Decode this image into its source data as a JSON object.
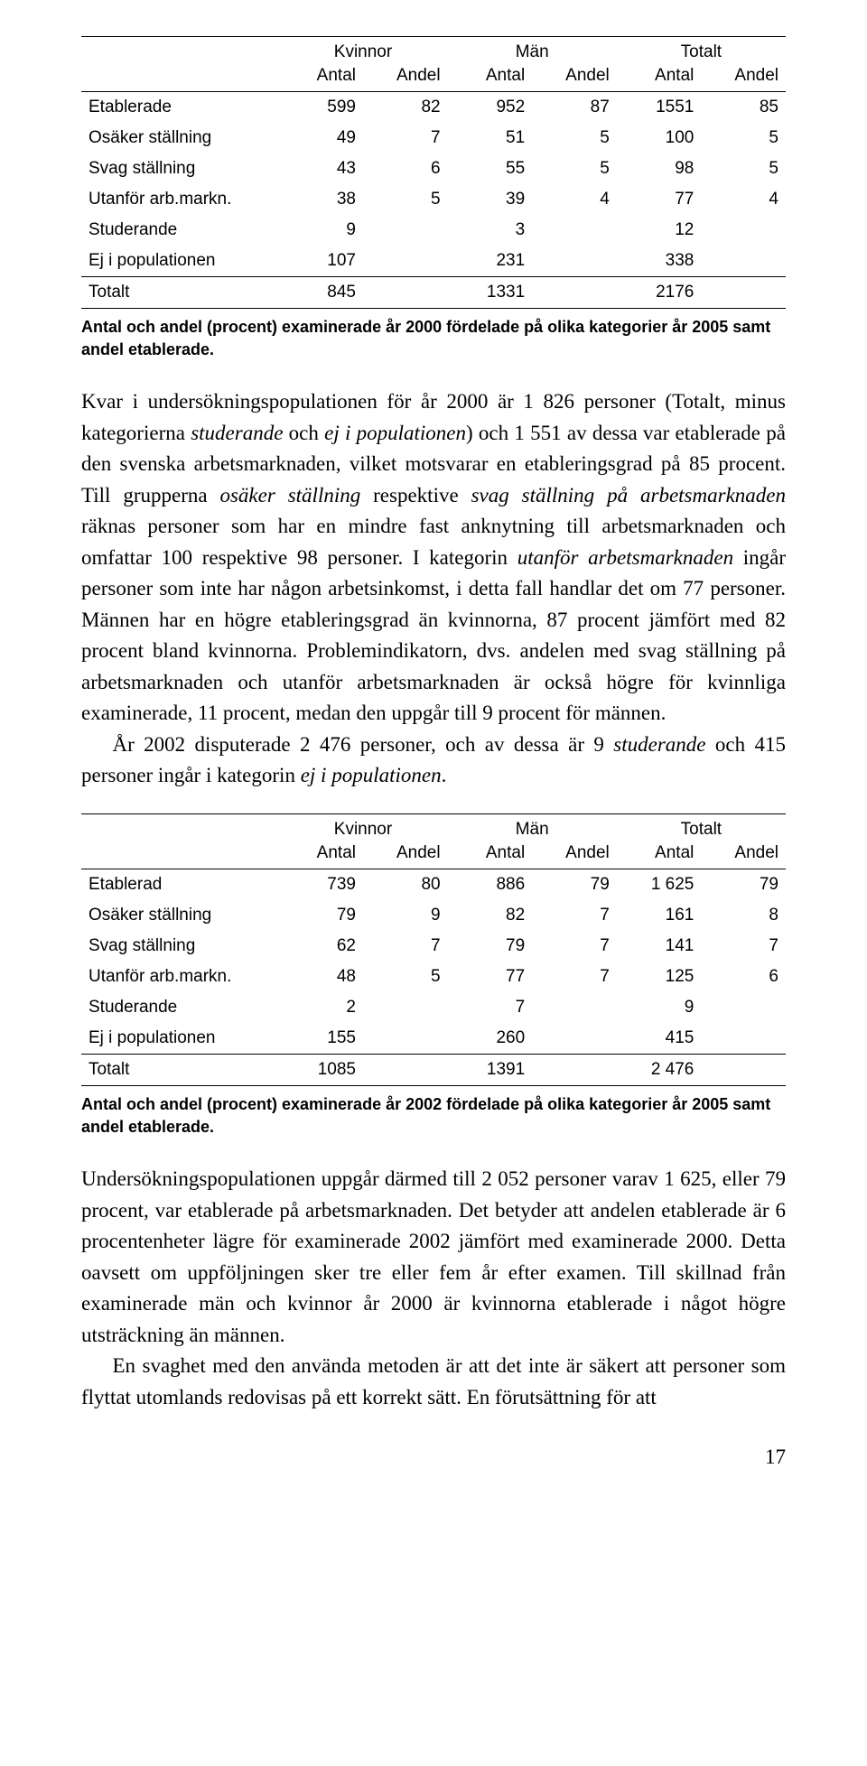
{
  "table1": {
    "group_headers": [
      "",
      "Kvinnor",
      "Män",
      "Totalt"
    ],
    "sub_headers": [
      "",
      "Antal",
      "Andel",
      "Antal",
      "Andel",
      "Antal",
      "Andel"
    ],
    "rows": [
      {
        "label": "Etablerade",
        "cells": [
          "599",
          "82",
          "952",
          "87",
          "1551",
          "85"
        ]
      },
      {
        "label": "Osäker ställning",
        "cells": [
          "49",
          "7",
          "51",
          "5",
          "100",
          "5"
        ]
      },
      {
        "label": "Svag ställning",
        "cells": [
          "43",
          "6",
          "55",
          "5",
          "98",
          "5"
        ]
      },
      {
        "label": "Utanför arb.markn.",
        "cells": [
          "38",
          "5",
          "39",
          "4",
          "77",
          "4"
        ]
      },
      {
        "label": "Studerande",
        "cells": [
          "9",
          "",
          "3",
          "",
          "12",
          ""
        ]
      },
      {
        "label": "Ej i populationen",
        "cells": [
          "107",
          "",
          "231",
          "",
          "338",
          ""
        ]
      },
      {
        "label": "Totalt",
        "cells": [
          "845",
          "",
          "1331",
          "",
          "2176",
          ""
        ]
      }
    ],
    "caption": "Antal och andel (procent) examinerade år 2000 fördelade på olika kategorier år 2005 samt andel etablerade."
  },
  "paragraph1_plain": "Kvar i undersökningspopulationen för år 2000 är 1 826 personer (Totalt, minus kategorierna studerande och ej i populationen) och 1 551 av dessa var etablerade på den svenska arbetsmarknaden, vilket motsvarar en etableringsgrad på 85 procent. Till grupperna osäker ställning respektive svag ställning på arbetsmarknaden räknas personer som har en mindre fast anknytning till arbetsmarknaden och omfattar 100 respektive 98 personer. I kategorin utanför arbetsmarknaden ingår personer som inte har någon arbetsinkomst, i detta fall handlar det om 77 personer. Männen har en högre etableringsgrad än kvinnorna, 87 procent jämfört med 82 procent bland kvinnorna. Problemindikatorn, dvs. andelen med svag ställning på arbetsmarknaden och utanför arbetsmarknaden är också högre för kvinnliga examinerade, 11 procent, medan den uppgår till 9 procent för männen.",
  "paragraph2_plain": "År 2002 disputerade 2 476 personer, och av dessa är 9 studerande och 415 personer ingår i kategorin ej i populationen.",
  "table2": {
    "group_headers": [
      "",
      "Kvinnor",
      "Män",
      "Totalt"
    ],
    "sub_headers": [
      "",
      "Antal",
      "Andel",
      "Antal",
      "Andel",
      "Antal",
      "Andel"
    ],
    "rows": [
      {
        "label": "Etablerad",
        "cells": [
          "739",
          "80",
          "886",
          "79",
          "1 625",
          "79"
        ]
      },
      {
        "label": "Osäker ställning",
        "cells": [
          "79",
          "9",
          "82",
          "7",
          "161",
          "8"
        ]
      },
      {
        "label": "Svag ställning",
        "cells": [
          "62",
          "7",
          "79",
          "7",
          "141",
          "7"
        ]
      },
      {
        "label": "Utanför arb.markn.",
        "cells": [
          "48",
          "5",
          "77",
          "7",
          "125",
          "6"
        ]
      },
      {
        "label": "Studerande",
        "cells": [
          "2",
          "",
          "7",
          "",
          "9",
          ""
        ]
      },
      {
        "label": "Ej i populationen",
        "cells": [
          "155",
          "",
          "260",
          "",
          "415",
          ""
        ]
      },
      {
        "label": "Totalt",
        "cells": [
          "1085",
          "",
          "1391",
          "",
          "2 476",
          ""
        ]
      }
    ],
    "caption": "Antal och andel (procent) examinerade år 2002 fördelade på olika kategorier år 2005 samt andel etablerade."
  },
  "paragraph3_plain": "Undersökningspopulationen uppgår därmed till 2 052 personer varav 1 625, eller 79 procent, var etablerade på arbetsmarknaden. Det betyder att andelen etablerade är 6 procentenheter lägre för examinerade 2002 jämfört med examinerade 2000. Detta oavsett om uppföljningen sker tre eller fem år efter examen. Till skillnad från examinerade män och kvinnor år 2000 är kvinnorna etablerade i något högre utsträckning än männen.",
  "paragraph4_plain": "En svaghet med den använda metoden är att det inte är säkert att personer som flyttat utomlands redovisas på ett korrekt sätt. En förutsättning för att",
  "page_number": "17",
  "col_widths": [
    "28%",
    "12%",
    "12%",
    "12%",
    "12%",
    "12%",
    "12%"
  ]
}
